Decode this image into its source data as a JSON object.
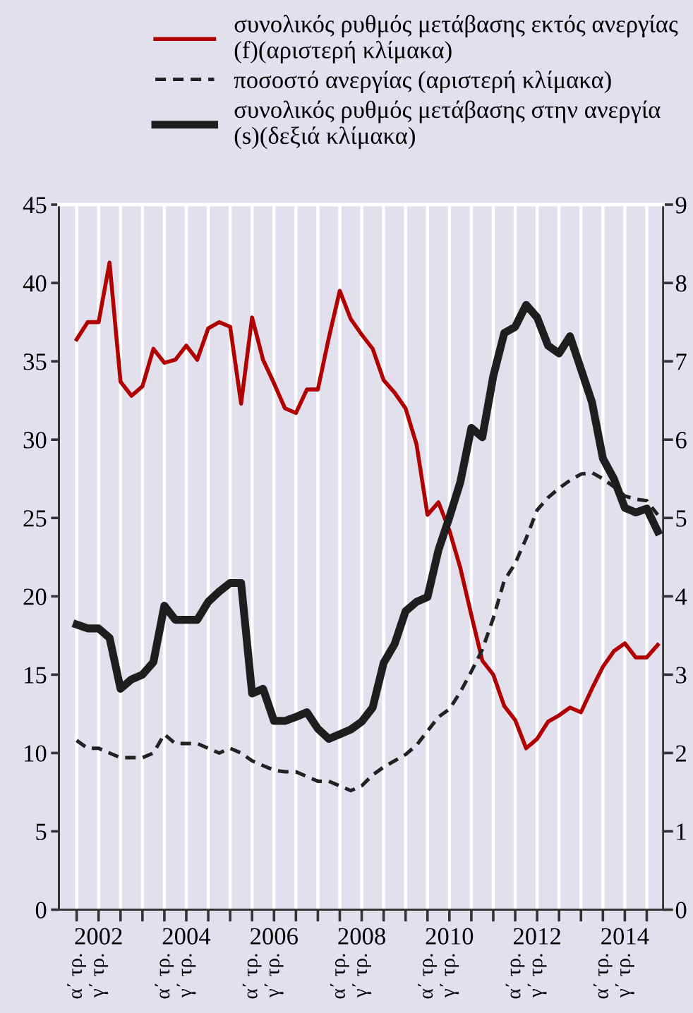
{
  "chart_data": {
    "type": "line",
    "categories": [
      "α΄ τρ.",
      null,
      "γ΄ τρ.",
      null,
      null,
      null,
      null,
      null,
      "α΄ τρ.",
      null,
      "γ΄ τρ.",
      null,
      null,
      null,
      null,
      null,
      "α΄ τρ.",
      null,
      "γ΄ τρ.",
      null,
      null,
      null,
      null,
      null,
      "α΄ τρ.",
      null,
      "γ΄ τρ.",
      null,
      null,
      null,
      null,
      null,
      "α΄ τρ.",
      null,
      "γ΄ τρ.",
      null,
      null,
      null,
      null,
      null,
      "α΄ τρ.",
      null,
      "γ΄ τρ.",
      null,
      null,
      null,
      null,
      null,
      "α΄ τρ.",
      null,
      "γ΄ τρ.",
      null,
      null,
      null
    ],
    "series": [
      {
        "name": "συνολικός ρυθμός μετάβασης εκτός ανεργίας (f)(αριστερή κλίμακα)",
        "color": "#b00000",
        "line_style": "solid",
        "values": [
          36.4,
          37.5,
          37.5,
          41.3,
          33.7,
          32.8,
          33.4,
          35.8,
          34.9,
          35.1,
          36.0,
          35.1,
          37.1,
          37.5,
          37.2,
          32.3,
          37.8,
          35.1,
          33.6,
          32.0,
          31.7,
          33.2,
          33.2,
          36.5,
          39.5,
          37.7,
          36.7,
          35.8,
          33.8,
          33.0,
          32.0,
          29.7,
          25.2,
          26.0,
          24.2,
          21.8,
          18.8,
          15.9,
          15.0,
          13.0,
          12.1,
          10.3,
          10.9,
          12.0,
          12.4,
          12.9,
          12.6,
          14.1,
          15.5,
          16.5,
          17.0,
          16.1,
          16.1,
          16.9
        ]
      },
      {
        "name": "ποσοστό ανεργίας (αριστερή κλίμακα)",
        "color": "#222222",
        "line_style": "dashed",
        "values": [
          10.8,
          10.3,
          10.3,
          10.0,
          9.7,
          9.7,
          9.7,
          10.0,
          11.2,
          10.6,
          10.6,
          10.6,
          10.3,
          10.0,
          10.3,
          10.0,
          9.5,
          9.2,
          8.9,
          8.8,
          8.8,
          8.5,
          8.2,
          8.2,
          7.9,
          7.6,
          7.9,
          8.6,
          9.1,
          9.5,
          9.9,
          10.5,
          11.4,
          12.3,
          12.8,
          13.9,
          15.2,
          16.6,
          18.6,
          21.0,
          22.1,
          23.7,
          25.5,
          26.3,
          26.9,
          27.4,
          27.8,
          27.9,
          27.5,
          27.0,
          26.4,
          26.2,
          26.1,
          25.2
        ]
      },
      {
        "name": "συνολικός ρυθμός μετάβασης στην ανεργία (s)(δεξιά κλίμακα)",
        "color": "#1e1e1e",
        "line_style": "solid",
        "axis": "y2",
        "values": [
          3.64,
          3.59,
          3.59,
          3.47,
          2.82,
          2.94,
          3.0,
          3.16,
          3.88,
          3.7,
          3.7,
          3.7,
          3.93,
          4.06,
          4.17,
          4.17,
          2.76,
          2.82,
          2.41,
          2.41,
          2.46,
          2.52,
          2.31,
          2.18,
          2.24,
          2.3,
          2.4,
          2.58,
          3.15,
          3.39,
          3.81,
          3.93,
          3.99,
          4.59,
          5.01,
          5.46,
          6.15,
          6.03,
          6.81,
          7.36,
          7.44,
          7.72,
          7.56,
          7.2,
          7.1,
          7.32,
          6.9,
          6.48,
          5.76,
          5.5,
          5.13,
          5.07,
          5.12,
          4.83
        ]
      }
    ],
    "x2lim": [
      2001.095,
      2014.875
    ],
    "x2ticks": [
      {
        "value": 2001.5,
        "label": null
      },
      {
        "value": 2002,
        "label": "2002"
      },
      {
        "value": 2002.5,
        "label": null
      },
      {
        "value": 2003,
        "label": null
      },
      {
        "value": 2003.5,
        "label": null
      },
      {
        "value": 2004,
        "label": "2004"
      },
      {
        "value": 2004.5,
        "label": null
      },
      {
        "value": 2005,
        "label": null
      },
      {
        "value": 2005.5,
        "label": null
      },
      {
        "value": 2006,
        "label": "2006"
      },
      {
        "value": 2006.5,
        "label": null
      },
      {
        "value": 2007,
        "label": null
      },
      {
        "value": 2007.5,
        "label": null
      },
      {
        "value": 2008,
        "label": "2008"
      },
      {
        "value": 2008.5,
        "label": null
      },
      {
        "value": 2009,
        "label": null
      },
      {
        "value": 2009.5,
        "label": null
      },
      {
        "value": 2010,
        "label": "2010"
      },
      {
        "value": 2010.5,
        "label": null
      },
      {
        "value": 2011,
        "label": null
      },
      {
        "value": 2011.5,
        "label": null
      },
      {
        "value": 2012,
        "label": "2012"
      },
      {
        "value": 2012.5,
        "label": null
      },
      {
        "value": 2013,
        "label": null
      },
      {
        "value": 2013.5,
        "label": null
      },
      {
        "value": 2014,
        "label": "2014"
      },
      {
        "value": 2014.5,
        "label": null
      }
    ],
    "ylim": [
      0,
      45
    ],
    "yticks": [
      0,
      5,
      10,
      15,
      20,
      25,
      30,
      35,
      40,
      45
    ],
    "y2lim": [
      0,
      9
    ],
    "y2ticks": [
      0,
      1,
      2,
      3,
      4,
      5,
      6,
      7,
      8,
      9
    ],
    "grid": "x",
    "legend": "top"
  }
}
